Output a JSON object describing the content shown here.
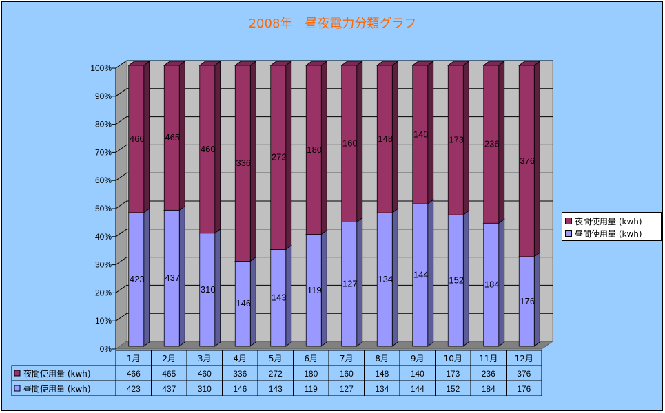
{
  "chart_data": {
    "type": "bar",
    "stacked": "percent",
    "title": "2008年　昼夜電力分類グラフ",
    "categories": [
      "1月",
      "2月",
      "3月",
      "4月",
      "5月",
      "6月",
      "7月",
      "8月",
      "9月",
      "10月",
      "11月",
      "12月"
    ],
    "series": [
      {
        "name": "夜間使用量 (kwh)",
        "color": "#993366",
        "values": [
          466,
          465,
          460,
          336,
          272,
          180,
          160,
          148,
          140,
          173,
          236,
          376
        ]
      },
      {
        "name": "昼間使用量 (kwh)",
        "color": "#9999ff",
        "values": [
          423,
          437,
          310,
          146,
          143,
          119,
          127,
          134,
          144,
          152,
          184,
          176
        ]
      }
    ],
    "y_ticks": [
      "0%",
      "10%",
      "20%",
      "30%",
      "40%",
      "50%",
      "60%",
      "70%",
      "80%",
      "90%",
      "100%"
    ],
    "ylim": [
      0,
      100
    ],
    "grid": true,
    "legend_position": "right",
    "data_table": true,
    "data_labels": true
  }
}
